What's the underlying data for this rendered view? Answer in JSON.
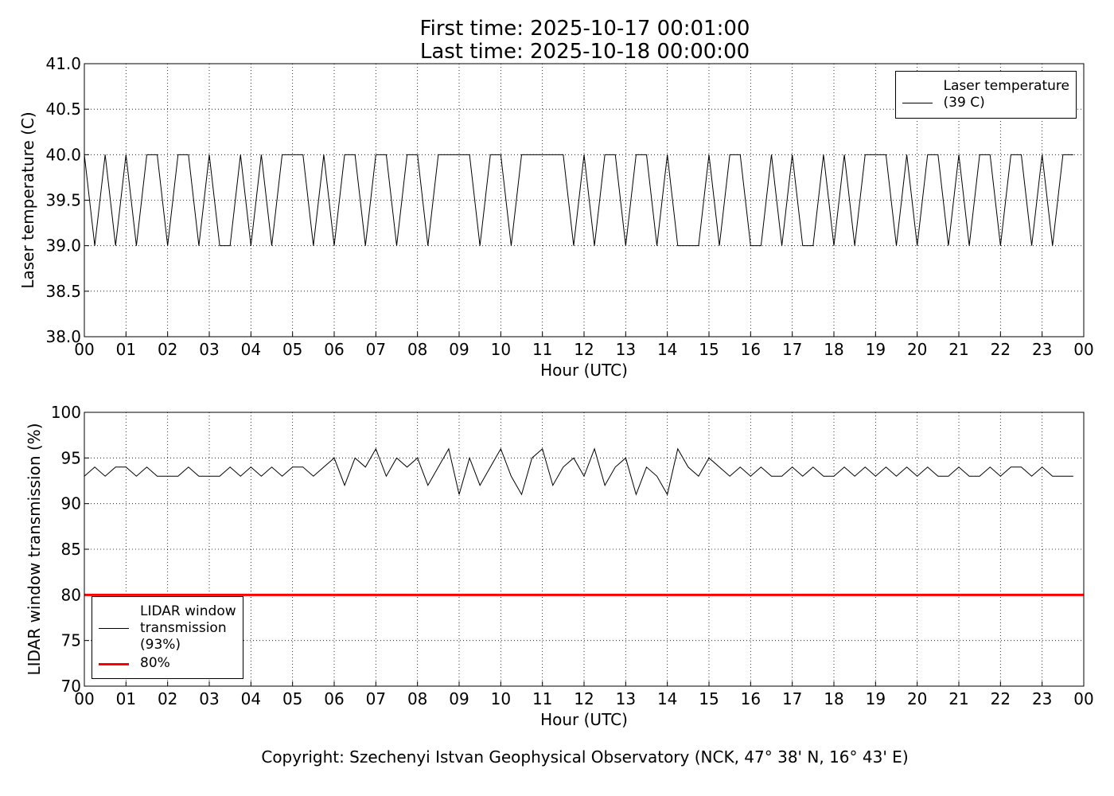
{
  "figure": {
    "title": "First time: 2025-10-17 00:01:00",
    "subtitle": "Last time: 2025-10-18 00:00:00",
    "footer": "Copyright: Szechenyi Istvan Geophysical Observatory (NCK, 47° 38' N, 16° 43' E)"
  },
  "chart_data": [
    {
      "type": "line",
      "xlabel": "Hour (UTC)",
      "ylabel": "Laser temperature (C)",
      "grid": true,
      "legend": "upper right",
      "xlim": [
        0,
        24
      ],
      "ylim": [
        38,
        41
      ],
      "xticks": [
        {
          "value": 0,
          "label": "00"
        },
        {
          "value": 1,
          "label": "01"
        },
        {
          "value": 2,
          "label": "02"
        },
        {
          "value": 3,
          "label": "03"
        },
        {
          "value": 4,
          "label": "04"
        },
        {
          "value": 5,
          "label": "05"
        },
        {
          "value": 6,
          "label": "06"
        },
        {
          "value": 7,
          "label": "07"
        },
        {
          "value": 8,
          "label": "08"
        },
        {
          "value": 9,
          "label": "09"
        },
        {
          "value": 10,
          "label": "10"
        },
        {
          "value": 11,
          "label": "11"
        },
        {
          "value": 12,
          "label": "12"
        },
        {
          "value": 13,
          "label": "13"
        },
        {
          "value": 14,
          "label": "14"
        },
        {
          "value": 15,
          "label": "15"
        },
        {
          "value": 16,
          "label": "16"
        },
        {
          "value": 17,
          "label": "17"
        },
        {
          "value": 18,
          "label": "18"
        },
        {
          "value": 19,
          "label": "19"
        },
        {
          "value": 20,
          "label": "20"
        },
        {
          "value": 21,
          "label": "21"
        },
        {
          "value": 22,
          "label": "22"
        },
        {
          "value": 23,
          "label": "23"
        },
        {
          "value": 24,
          "label": "00"
        }
      ],
      "yticks": [
        {
          "value": 38,
          "label": "38.0"
        },
        38.5,
        {
          "value": 39,
          "label": "39.0"
        },
        39.5,
        {
          "value": 40,
          "label": "40.0"
        },
        40.5,
        {
          "value": 41,
          "label": "41.0"
        }
      ],
      "series": [
        {
          "name": "Laser temperature\n(39 C)",
          "color": "#000000",
          "linewidth": 1,
          "x": [
            0,
            0.25,
            0.5,
            0.75,
            1,
            1.25,
            1.5,
            1.75,
            2,
            2.25,
            2.5,
            2.75,
            3,
            3.25,
            3.5,
            3.75,
            4,
            4.25,
            4.5,
            4.75,
            5,
            5.25,
            5.5,
            5.75,
            6,
            6.25,
            6.5,
            6.75,
            7,
            7.25,
            7.5,
            7.75,
            8,
            8.25,
            8.5,
            8.75,
            9,
            9.25,
            9.5,
            9.75,
            10,
            10.25,
            10.5,
            10.75,
            11,
            11.25,
            11.5,
            11.75,
            12,
            12.25,
            12.5,
            12.75,
            13,
            13.25,
            13.5,
            13.75,
            14,
            14.25,
            14.5,
            14.75,
            15,
            15.25,
            15.5,
            15.75,
            16,
            16.25,
            16.5,
            16.75,
            17,
            17.25,
            17.5,
            17.75,
            18,
            18.25,
            18.5,
            18.75,
            19,
            19.25,
            19.5,
            19.75,
            20,
            20.25,
            20.5,
            20.75,
            21,
            21.25,
            21.5,
            21.75,
            22,
            22.25,
            22.5,
            22.75,
            23,
            23.25,
            23.5,
            23.75
          ],
          "values": [
            40,
            39,
            40,
            39,
            40,
            39,
            40,
            40,
            39,
            40,
            40,
            39,
            40,
            39,
            39,
            40,
            39,
            40,
            39,
            40,
            40,
            40,
            39,
            40,
            39,
            40,
            40,
            39,
            40,
            40,
            39,
            40,
            40,
            39,
            40,
            40,
            40,
            40,
            39,
            40,
            40,
            39,
            40,
            40,
            40,
            40,
            40,
            39,
            40,
            39,
            40,
            40,
            39,
            40,
            40,
            39,
            40,
            39,
            39,
            39,
            40,
            39,
            40,
            40,
            39,
            39,
            40,
            39,
            40,
            39,
            39,
            40,
            39,
            40,
            39,
            40,
            40,
            40,
            39,
            40,
            39,
            40,
            40,
            39,
            40,
            39,
            40,
            40,
            39,
            40,
            40,
            39,
            40,
            39,
            40,
            40
          ]
        }
      ]
    },
    {
      "type": "line",
      "xlabel": "Hour (UTC)",
      "ylabel": "LIDAR window transmission (%)",
      "grid": true,
      "legend": "lower left",
      "xlim": [
        0,
        24
      ],
      "ylim": [
        70,
        100
      ],
      "xticks": [
        {
          "value": 0,
          "label": "00"
        },
        {
          "value": 1,
          "label": "01"
        },
        {
          "value": 2,
          "label": "02"
        },
        {
          "value": 3,
          "label": "03"
        },
        {
          "value": 4,
          "label": "04"
        },
        {
          "value": 5,
          "label": "05"
        },
        {
          "value": 6,
          "label": "06"
        },
        {
          "value": 7,
          "label": "07"
        },
        {
          "value": 8,
          "label": "08"
        },
        {
          "value": 9,
          "label": "09"
        },
        {
          "value": 10,
          "label": "10"
        },
        {
          "value": 11,
          "label": "11"
        },
        {
          "value": 12,
          "label": "12"
        },
        {
          "value": 13,
          "label": "13"
        },
        {
          "value": 14,
          "label": "14"
        },
        {
          "value": 15,
          "label": "15"
        },
        {
          "value": 16,
          "label": "16"
        },
        {
          "value": 17,
          "label": "17"
        },
        {
          "value": 18,
          "label": "18"
        },
        {
          "value": 19,
          "label": "19"
        },
        {
          "value": 20,
          "label": "20"
        },
        {
          "value": 21,
          "label": "21"
        },
        {
          "value": 22,
          "label": "22"
        },
        {
          "value": 23,
          "label": "23"
        },
        {
          "value": 24,
          "label": "00"
        }
      ],
      "yticks": [
        70,
        75,
        80,
        85,
        90,
        95,
        100
      ],
      "series": [
        {
          "name": "LIDAR window\ntransmission\n(93%)",
          "color": "#000000",
          "linewidth": 1,
          "x": [
            0,
            0.25,
            0.5,
            0.75,
            1,
            1.25,
            1.5,
            1.75,
            2,
            2.25,
            2.5,
            2.75,
            3,
            3.25,
            3.5,
            3.75,
            4,
            4.25,
            4.5,
            4.75,
            5,
            5.25,
            5.5,
            5.75,
            6,
            6.25,
            6.5,
            6.75,
            7,
            7.25,
            7.5,
            7.75,
            8,
            8.25,
            8.5,
            8.75,
            9,
            9.25,
            9.5,
            9.75,
            10,
            10.25,
            10.5,
            10.75,
            11,
            11.25,
            11.5,
            11.75,
            12,
            12.25,
            12.5,
            12.75,
            13,
            13.25,
            13.5,
            13.75,
            14,
            14.25,
            14.5,
            14.75,
            15,
            15.25,
            15.5,
            15.75,
            16,
            16.25,
            16.5,
            16.75,
            17,
            17.25,
            17.5,
            17.75,
            18,
            18.25,
            18.5,
            18.75,
            19,
            19.25,
            19.5,
            19.75,
            20,
            20.25,
            20.5,
            20.75,
            21,
            21.25,
            21.5,
            21.75,
            22,
            22.25,
            22.5,
            22.75,
            23,
            23.25,
            23.5,
            23.75
          ],
          "values": [
            93,
            94,
            93,
            94,
            94,
            93,
            94,
            93,
            93,
            93,
            94,
            93,
            93,
            93,
            94,
            93,
            94,
            93,
            94,
            93,
            94,
            94,
            93,
            94,
            95,
            92,
            95,
            94,
            96,
            93,
            95,
            94,
            95,
            92,
            94,
            96,
            91,
            95,
            92,
            94,
            96,
            93,
            91,
            95,
            96,
            92,
            94,
            95,
            93,
            96,
            92,
            94,
            95,
            91,
            94,
            93,
            91,
            96,
            94,
            93,
            95,
            94,
            93,
            94,
            93,
            94,
            93,
            93,
            94,
            93,
            94,
            93,
            93,
            94,
            93,
            94,
            93,
            94,
            93,
            94,
            93,
            94,
            93,
            93,
            94,
            93,
            93,
            94,
            93,
            94,
            94,
            93,
            94,
            93,
            93,
            93
          ]
        },
        {
          "name": "80%",
          "color": "#ff0000",
          "linewidth": 3,
          "x": [
            0,
            24
          ],
          "values": [
            80,
            80
          ]
        }
      ]
    }
  ]
}
